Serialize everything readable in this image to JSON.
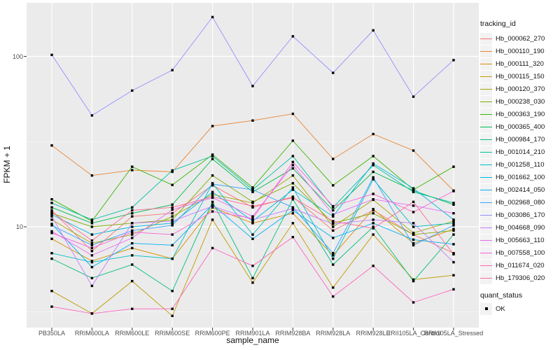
{
  "chart_data": {
    "type": "line",
    "title": "",
    "xlabel": "sample_name",
    "ylabel": "FPKM + 1",
    "y_scale": "log10",
    "y_ticks": [
      {
        "value": 10,
        "label": "10"
      },
      {
        "value": 100,
        "label": "100"
      }
    ],
    "y_minor_ticks": [
      3.162,
      31.623
    ],
    "ylim_approx": [
      2.6,
      202
    ],
    "grid": "on",
    "panel_background": "#EBEBEB",
    "gridline_color": "#FFFFFF",
    "tick_mark_color": "#333333",
    "point_color": "#000000",
    "point_shape": "black-square",
    "x_categories": [
      "PB350LA",
      "RRIM600LA",
      "RRIM600LE",
      "RRIM600SE",
      "RRIM600PE",
      "RRIM901LA",
      "RRIM928BA",
      "RRIM928LA",
      "RRIM928LE",
      "RRII105LA_Control",
      "RRII105LA_Stressed"
    ],
    "legend": {
      "position": "right",
      "title": "tracking_id",
      "key_background": "#F2F2F2",
      "quant_title": "quant_status",
      "quant_items": [
        {
          "label": "OK",
          "marker": "black-square"
        }
      ]
    },
    "series": [
      {
        "name": "Hb_000062_270",
        "color": "#F8766D",
        "values": [
          12.5,
          7.2,
          11.5,
          12.0,
          17.5,
          13.0,
          15.0,
          9.5,
          12.5,
          9.0,
          7.0
        ]
      },
      {
        "name": "Hb_000110_190",
        "color": "#EA8331",
        "values": [
          30.0,
          20.0,
          21.5,
          21.0,
          39.0,
          42.0,
          46.0,
          25.0,
          35.0,
          28.0,
          16.3
        ]
      },
      {
        "name": "Hb_000111_320",
        "color": "#D89000",
        "values": [
          8.5,
          6.3,
          7.5,
          6.5,
          13.0,
          10.5,
          12.0,
          6.8,
          12.7,
          8.0,
          9.7
        ]
      },
      {
        "name": "Hb_000115_150",
        "color": "#C09B00",
        "values": [
          4.2,
          3.1,
          4.8,
          3.0,
          11.0,
          4.7,
          10.5,
          4.4,
          9.0,
          4.9,
          5.2
        ]
      },
      {
        "name": "Hb_000120_370",
        "color": "#A3A500",
        "values": [
          11.0,
          8.0,
          9.0,
          11.5,
          15.5,
          13.8,
          20.0,
          10.0,
          14.4,
          9.2,
          10.8
        ]
      },
      {
        "name": "Hb_000238_030",
        "color": "#7CAE00",
        "values": [
          12.0,
          10.0,
          10.5,
          11.0,
          20.0,
          14.0,
          18.0,
          10.5,
          12.0,
          9.0,
          9.5
        ]
      },
      {
        "name": "Hb_000363_190",
        "color": "#39B600",
        "values": [
          14.5,
          10.8,
          22.5,
          17.6,
          26.5,
          17.0,
          32.0,
          17.5,
          26.0,
          16.5,
          22.5
        ]
      },
      {
        "name": "Hb_000365_400",
        "color": "#00BB4E",
        "values": [
          13.0,
          10.5,
          12.0,
          13.5,
          25.0,
          16.0,
          22.0,
          12.5,
          21.0,
          16.3,
          13.5
        ]
      },
      {
        "name": "Hb_000984_170",
        "color": "#00BF7D",
        "values": [
          6.5,
          5.0,
          6.0,
          4.2,
          14.0,
          5.0,
          14.5,
          6.0,
          10.0,
          4.8,
          9.0
        ]
      },
      {
        "name": "Hb_001014_210",
        "color": "#00C1A3",
        "values": [
          13.8,
          11.0,
          13.0,
          21.4,
          26.0,
          16.5,
          26.0,
          13.0,
          23.0,
          16.0,
          13.8
        ]
      },
      {
        "name": "Hb_001258_110",
        "color": "#00BFC4",
        "values": [
          7.0,
          6.2,
          6.8,
          6.5,
          18.0,
          9.0,
          17.0,
          6.5,
          19.0,
          10.0,
          10.5
        ]
      },
      {
        "name": "Hb_001662_100",
        "color": "#00BAE0",
        "values": [
          11.8,
          9.0,
          10.0,
          10.5,
          16.0,
          10.8,
          16.5,
          11.5,
          23.5,
          16.8,
          11.0
        ]
      },
      {
        "name": "Hb_002414_050",
        "color": "#00B0F6",
        "values": [
          10.4,
          5.8,
          8.0,
          7.8,
          13.5,
          8.5,
          12.5,
          8.6,
          10.5,
          8.4,
          7.9
        ]
      },
      {
        "name": "Hb_002968_080",
        "color": "#35A2FF",
        "values": [
          10.2,
          7.8,
          9.5,
          10.2,
          17.8,
          16.5,
          13.0,
          7.0,
          19.5,
          7.8,
          10.2
        ]
      },
      {
        "name": "Hb_003086_170",
        "color": "#9590FF",
        "values": [
          102,
          45,
          63,
          83,
          170,
          67,
          131,
          80,
          142,
          58,
          95
        ]
      },
      {
        "name": "Hb_004668_090",
        "color": "#C77CFF",
        "values": [
          11.5,
          4.5,
          10.5,
          10.8,
          13.2,
          11.0,
          12.8,
          10.4,
          11.0,
          10.5,
          6.2
        ]
      },
      {
        "name": "Hb_005663_110",
        "color": "#E76BF3",
        "values": [
          9.4,
          6.8,
          8.6,
          12.6,
          14.8,
          11.5,
          23.0,
          11.8,
          14.5,
          13.3,
          12.0
        ]
      },
      {
        "name": "Hb_007558_100",
        "color": "#FA62DB",
        "values": [
          9.2,
          7.5,
          9.3,
          9.0,
          12.3,
          11.2,
          24.0,
          13.2,
          15.6,
          12.2,
          16.2
        ]
      },
      {
        "name": "Hb_011674_020",
        "color": "#FF62BC",
        "values": [
          3.4,
          3.1,
          3.3,
          3.3,
          7.5,
          5.9,
          8.7,
          3.9,
          5.9,
          3.6,
          4.3
        ]
      },
      {
        "name": "Hb_179306_020",
        "color": "#FF6A98",
        "values": [
          12.2,
          8.3,
          12.5,
          13.0,
          15.0,
          13.2,
          14.8,
          10.8,
          9.8,
          14.0,
          6.9
        ]
      }
    ]
  }
}
